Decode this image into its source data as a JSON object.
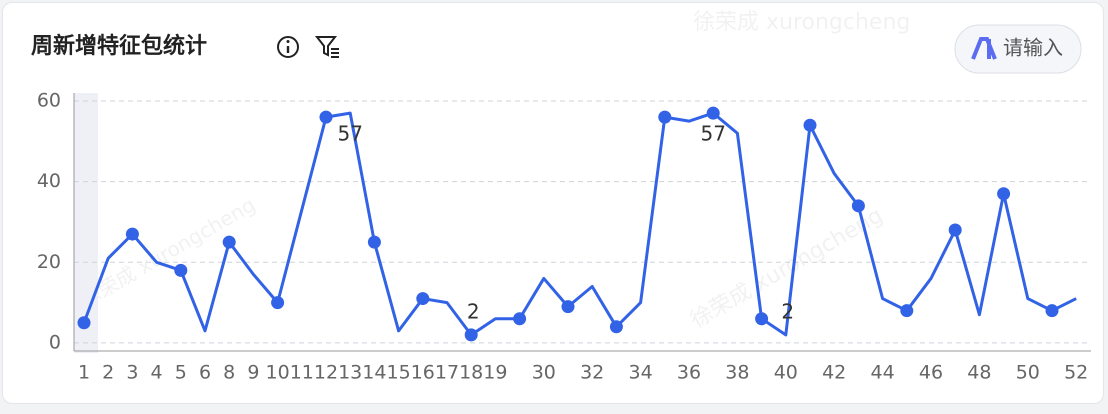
{
  "chart_data": {
    "type": "line",
    "title": "周新增特征包统计",
    "input_placeholder": "请输入",
    "watermark": "徐荣成 xurongcheng",
    "categories": [
      "1",
      "2",
      "3",
      "4",
      "5",
      "6",
      "8",
      "9",
      "10",
      "11",
      "12",
      "13",
      "14",
      "15",
      "16",
      "17",
      "18",
      "19",
      null,
      "30",
      null,
      "32",
      null,
      "34",
      null,
      "36",
      null,
      "38",
      null,
      "40",
      null,
      "42",
      null,
      "44",
      null,
      "46",
      null,
      "48",
      null,
      "50",
      null,
      "52"
    ],
    "series": [
      {
        "name": "新增特征包",
        "color": "#3262e6",
        "values": [
          5,
          21,
          27,
          20,
          18,
          3,
          25,
          17,
          10,
          33,
          56,
          57,
          25,
          3,
          11,
          10,
          2,
          6,
          6,
          16,
          9,
          14,
          4,
          10,
          56,
          55,
          57,
          52,
          6,
          2,
          54,
          42,
          34,
          11,
          8,
          16,
          28,
          7,
          37,
          11,
          8,
          11
        ]
      }
    ],
    "ylim": [
      -2,
      60
    ],
    "yticks": [
      0,
      20,
      40,
      60
    ],
    "grid": true
  }
}
